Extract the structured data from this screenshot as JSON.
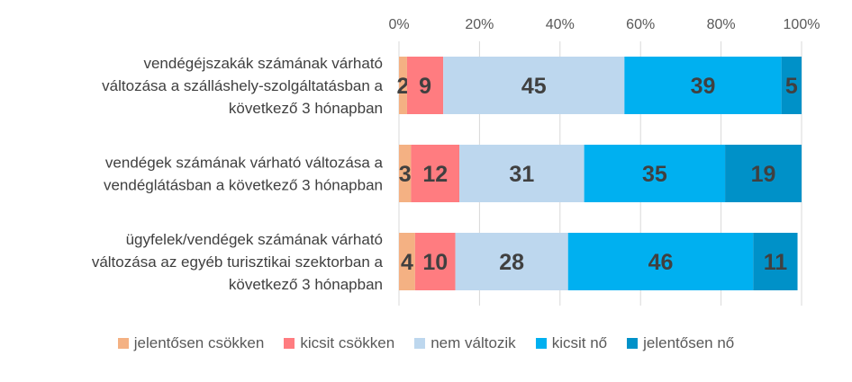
{
  "chart_data": {
    "type": "bar",
    "orientation": "horizontal",
    "stacked": true,
    "percent_axis": true,
    "xlim": [
      0,
      100
    ],
    "xticks": [
      "0%",
      "20%",
      "40%",
      "60%",
      "80%",
      "100%"
    ],
    "categories": [
      [
        "vendégéjszakák számának várható",
        "változása a szálláshely-szolgáltatásban a",
        "következő 3 hónapban"
      ],
      [
        "vendégek számának várható változása a",
        "vendéglátásban a következő 3 hónapban"
      ],
      [
        "ügyfelek/vendégek számának várható",
        "változása az egyéb turisztikai szektorban a",
        "következő 3 hónapban"
      ]
    ],
    "series": [
      {
        "name": "jelentősen csökken",
        "color": "#f4b183",
        "values": [
          2,
          3,
          4
        ]
      },
      {
        "name": "kicsit csökken",
        "color": "#ff7c80",
        "values": [
          9,
          12,
          10
        ]
      },
      {
        "name": "nem változik",
        "color": "#bdd7ee",
        "values": [
          45,
          31,
          28
        ]
      },
      {
        "name": "kicsit nő",
        "color": "#00b0f0",
        "values": [
          39,
          35,
          46
        ]
      },
      {
        "name": "jelentősen nő",
        "color": "#0091c8",
        "values": [
          5,
          19,
          11
        ]
      }
    ],
    "legend_position": "bottom",
    "grid": true
  }
}
